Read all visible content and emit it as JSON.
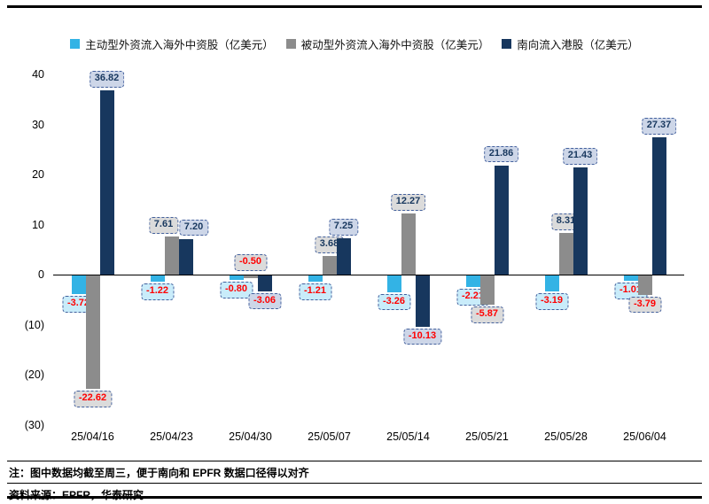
{
  "chart_data": {
    "type": "bar",
    "categories": [
      "25/04/16",
      "25/04/23",
      "25/04/30",
      "25/05/07",
      "25/05/14",
      "25/05/21",
      "25/05/28",
      "25/06/04"
    ],
    "series": [
      {
        "name": "主动型外资流入海外中资股（亿美元）",
        "color": "#33B3E5",
        "label_bg": "#C9ECFA",
        "values": [
          -3.72,
          -1.22,
          -0.8,
          -1.21,
          -3.26,
          -2.21,
          -3.19,
          -1.01
        ]
      },
      {
        "name": "被动型外资流入海外中资股（亿美元）",
        "color": "#8C8C8C",
        "label_bg": "#DBDBDB",
        "values": [
          -22.62,
          7.61,
          -0.5,
          3.68,
          12.27,
          -5.87,
          8.31,
          -3.79
        ],
        "label_above_zero": [
          false,
          false,
          true,
          false,
          false,
          false,
          false,
          false
        ]
      },
      {
        "name": "南向流入港股（亿美元）",
        "color": "#17375E",
        "label_bg": "#CDD6E8",
        "values": [
          36.82,
          7.2,
          -3.06,
          7.25,
          -10.13,
          21.86,
          21.43,
          27.37
        ]
      }
    ],
    "ylim": [
      -30,
      40
    ],
    "yticks": [
      {
        "v": 40,
        "label": "40"
      },
      {
        "v": 30,
        "label": "30"
      },
      {
        "v": 20,
        "label": "20"
      },
      {
        "v": 10,
        "label": "10"
      },
      {
        "v": 0,
        "label": "0"
      },
      {
        "v": -10,
        "label": "(10)"
      },
      {
        "v": -20,
        "label": "(20)"
      },
      {
        "v": -30,
        "label": "(30)"
      }
    ],
    "grid": false,
    "legend_position": "top",
    "label_border": "#44619D",
    "value_label_colors": {
      "positive": "#17375E",
      "negative": "#FF0000"
    }
  },
  "notes": {
    "note1": "注：图中数据均截至周三，便于南向和 EPFR 数据口径得以对齐",
    "note2": "资料来源：EPFR，华泰研究"
  }
}
